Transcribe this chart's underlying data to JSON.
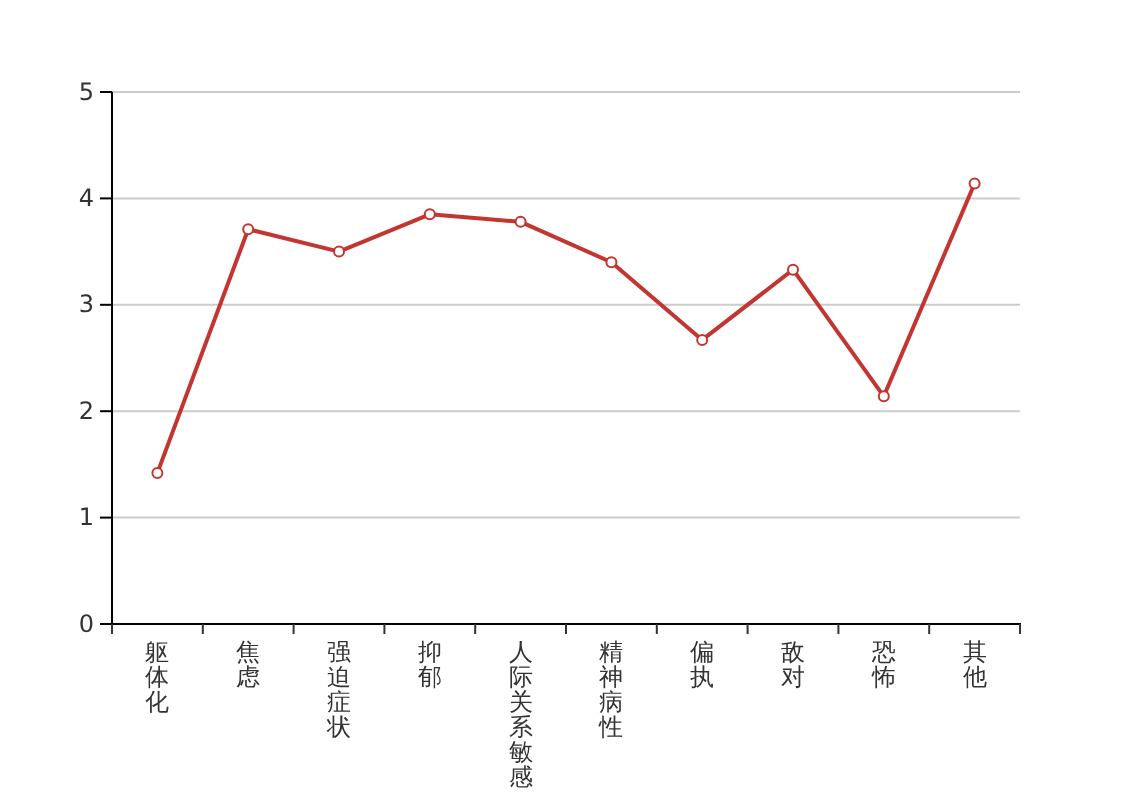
{
  "chart_data": {
    "type": "line",
    "categories": [
      "躯体化",
      "焦虑",
      "强迫症状",
      "抑郁",
      "人际关系敏感",
      "精神病性",
      "偏执",
      "敌对",
      "恐怖",
      "其他"
    ],
    "series": [
      {
        "color": "#c23531",
        "values": [
          1.42,
          3.71,
          3.5,
          3.85,
          3.78,
          3.4,
          2.67,
          3.33,
          2.14,
          4.14
        ]
      }
    ],
    "ylim": [
      0,
      5
    ],
    "yticks": [
      0,
      1,
      2,
      3,
      4,
      5
    ],
    "grid": "y",
    "marker": "circle"
  }
}
